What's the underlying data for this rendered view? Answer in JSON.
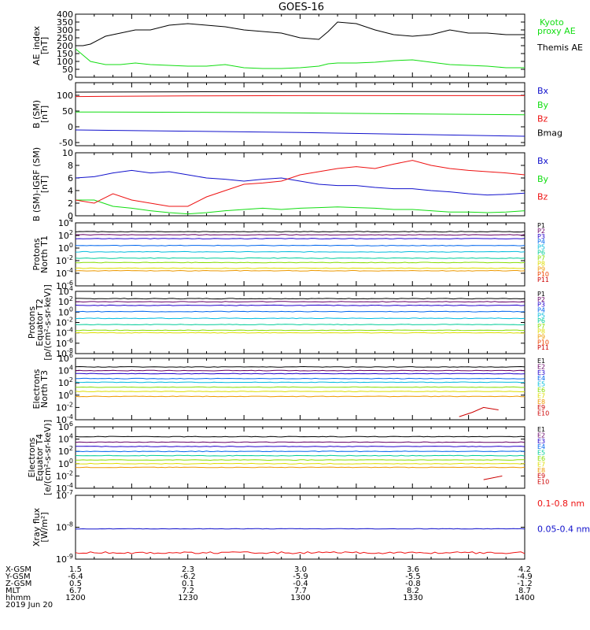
{
  "title": "GOES-16",
  "colors": {
    "black": "#000000",
    "red": "#ee1111",
    "green": "#11dd11",
    "blue": "#1111cc",
    "p1": "#000000",
    "p2": "#660066",
    "p3": "#2200cc",
    "p4": "#0066ee",
    "p5": "#00bbdd",
    "p6": "#00cc99",
    "p7": "#88dd00",
    "p8": "#dddd00",
    "p9": "#ee9900",
    "p10": "#ee4400",
    "p11": "#cc0000"
  },
  "chart_data": [
    {
      "type": "line",
      "ylabel": [
        "AE_index",
        "[nT]"
      ],
      "ylim": [
        0,
        400
      ],
      "ticks": [
        "0",
        "50",
        "100",
        "150",
        "200",
        "250",
        "300",
        "350",
        "400"
      ],
      "log": false,
      "series": [
        {
          "name": "Kyoto proxy AE",
          "color": "green",
          "x": [
            0,
            4,
            8,
            16,
            24,
            32,
            40,
            50,
            60,
            70,
            80,
            90,
            100,
            110,
            120,
            130,
            135,
            140,
            150,
            160,
            170,
            180,
            190,
            200,
            210,
            220,
            230,
            240
          ],
          "y": [
            180,
            140,
            100,
            80,
            80,
            90,
            80,
            75,
            70,
            70,
            80,
            60,
            55,
            55,
            60,
            70,
            85,
            90,
            90,
            95,
            105,
            110,
            95,
            80,
            75,
            70,
            60,
            60
          ]
        },
        {
          "name": "Themis AE",
          "color": "black",
          "x": [
            0,
            4,
            8,
            16,
            24,
            32,
            40,
            50,
            60,
            70,
            80,
            90,
            100,
            110,
            120,
            130,
            135,
            140,
            150,
            160,
            170,
            180,
            190,
            200,
            210,
            220,
            230,
            240
          ],
          "y": [
            200,
            200,
            210,
            260,
            280,
            300,
            300,
            330,
            340,
            330,
            320,
            300,
            290,
            280,
            250,
            240,
            290,
            350,
            340,
            300,
            270,
            260,
            270,
            300,
            280,
            280,
            270,
            270
          ]
        }
      ],
      "legend": [
        "Kyoto proxy AE",
        "Themis AE"
      ]
    },
    {
      "type": "line",
      "ylabel": [
        "B (SM)",
        "[nT]"
      ],
      "ylim": [
        -60,
        140
      ],
      "ticks": [
        "-50",
        "0",
        "50",
        "100"
      ],
      "tickvals": [
        -50,
        0,
        50,
        100
      ],
      "log": false,
      "series": [
        {
          "name": "Bx",
          "color": "blue",
          "x": [
            0,
            60,
            120,
            180,
            240
          ],
          "y": [
            -10,
            -14,
            -18,
            -24,
            -30
          ]
        },
        {
          "name": "By",
          "color": "green",
          "x": [
            0,
            60,
            120,
            180,
            240
          ],
          "y": [
            47,
            46,
            44,
            41,
            38
          ]
        },
        {
          "name": "Bz",
          "color": "red",
          "x": [
            0,
            60,
            120,
            180,
            240
          ],
          "y": [
            96,
            98,
            99,
            99,
            99
          ]
        },
        {
          "name": "Bmag",
          "color": "black",
          "x": [
            0,
            60,
            120,
            180,
            240
          ],
          "y": [
            110,
            111,
            112,
            112,
            112
          ]
        }
      ],
      "legend": [
        "Bx",
        "By",
        "Bz",
        "Bmag"
      ]
    },
    {
      "type": "line",
      "ylabel": [
        "B (SM)-IGRF (SM)",
        "[nT]"
      ],
      "ylim": [
        0,
        10
      ],
      "ticks": [
        "0",
        "2",
        "4",
        "6",
        "8",
        "10"
      ],
      "tickvals": [
        0,
        2,
        4,
        6,
        8,
        10
      ],
      "log": false,
      "series": [
        {
          "name": "Bx",
          "color": "blue",
          "x": [
            0,
            10,
            20,
            30,
            40,
            50,
            60,
            70,
            80,
            90,
            100,
            110,
            120,
            130,
            140,
            150,
            160,
            170,
            180,
            190,
            200,
            210,
            220,
            230,
            240
          ],
          "y": [
            6.0,
            6.2,
            6.8,
            7.2,
            6.8,
            7.0,
            6.5,
            6.0,
            5.8,
            5.5,
            5.8,
            6.0,
            5.5,
            5.0,
            4.8,
            4.8,
            4.5,
            4.3,
            4.3,
            4.0,
            3.8,
            3.5,
            3.3,
            3.4,
            3.6
          ]
        },
        {
          "name": "By",
          "color": "green",
          "x": [
            0,
            10,
            20,
            30,
            40,
            50,
            60,
            70,
            80,
            90,
            100,
            110,
            120,
            130,
            140,
            150,
            160,
            170,
            180,
            190,
            200,
            210,
            220,
            230,
            240
          ],
          "y": [
            2.5,
            2.5,
            1.5,
            1.2,
            0.8,
            0.5,
            0.3,
            0.5,
            0.8,
            1.0,
            1.2,
            1.0,
            1.2,
            1.3,
            1.4,
            1.3,
            1.2,
            1.0,
            1.0,
            0.8,
            0.6,
            0.6,
            0.5,
            0.6,
            0.8
          ]
        },
        {
          "name": "Bz",
          "color": "red",
          "x": [
            0,
            10,
            20,
            30,
            40,
            50,
            60,
            70,
            80,
            90,
            100,
            110,
            120,
            130,
            140,
            150,
            160,
            170,
            180,
            190,
            200,
            210,
            220,
            230,
            240
          ],
          "y": [
            2.5,
            2.0,
            3.5,
            2.5,
            2.0,
            1.5,
            1.5,
            3.0,
            4.0,
            5.0,
            5.2,
            5.5,
            6.5,
            7.0,
            7.5,
            7.8,
            7.5,
            8.2,
            8.8,
            8.0,
            7.5,
            7.2,
            7.0,
            6.8,
            6.5
          ]
        }
      ],
      "legend": [
        "Bx",
        "By",
        "Bz"
      ]
    },
    {
      "type": "line",
      "ylabel": [
        "Protons",
        "North T1"
      ],
      "ylim": [
        -6,
        4
      ],
      "log": true,
      "ticks": [
        "10^-6",
        "10^-4",
        "10^-2",
        "10^0",
        "10^2",
        "10^4"
      ],
      "tickvals": [
        -6,
        -4,
        -2,
        0,
        2,
        4
      ],
      "series": [
        {
          "name": "P1",
          "color": "p1",
          "level": 2.6
        },
        {
          "name": "P2",
          "color": "p2",
          "level": 2.1
        },
        {
          "name": "P3",
          "color": "p3",
          "level": 1.5
        },
        {
          "name": "P4",
          "color": "p4",
          "level": 0.4
        },
        {
          "name": "P5",
          "color": "p5",
          "level": -0.6
        },
        {
          "name": "P6",
          "color": "p6",
          "level": -1.6
        },
        {
          "name": "P7",
          "color": "p7",
          "level": -2.3
        },
        {
          "name": "P8",
          "color": "p8",
          "level": -3.2
        },
        {
          "name": "P9",
          "color": "p9",
          "level": -3.6
        },
        {
          "name": "P10",
          "color": "p10"
        },
        {
          "name": "P11",
          "color": "p11"
        }
      ],
      "legend": [
        "P1",
        "P2",
        "P3",
        "P4",
        "P5",
        "P6",
        "P7",
        "P8",
        "P9",
        "P10",
        "P11"
      ]
    },
    {
      "type": "line",
      "ylabel": [
        "Protons",
        "Equator T2",
        "[p/(cm²-s-sr-keV)]"
      ],
      "ylim": [
        -8,
        4
      ],
      "log": true,
      "ticks": [
        "10^-8",
        "10^-6",
        "10^-4",
        "10^-2",
        "10^0",
        "10^2",
        "10^4"
      ],
      "tickvals": [
        -8,
        -6,
        -4,
        -2,
        0,
        2,
        4
      ],
      "series": [
        {
          "name": "P1",
          "color": "p1",
          "level": 2.6
        },
        {
          "name": "P2",
          "color": "p2",
          "level": 2.0
        },
        {
          "name": "P3",
          "color": "p3",
          "level": 1.3
        },
        {
          "name": "P4",
          "color": "p4",
          "level": 0.1
        },
        {
          "name": "P5",
          "color": "p5",
          "level": -1.2
        },
        {
          "name": "P6",
          "color": "p6",
          "level": -2.4
        },
        {
          "name": "P7",
          "color": "p7",
          "level": -3.5
        },
        {
          "name": "P8",
          "color": "p8",
          "level": -4.0
        },
        {
          "name": "P9",
          "color": "p9"
        },
        {
          "name": "P10",
          "color": "p10"
        },
        {
          "name": "P11",
          "color": "p11"
        }
      ],
      "legend": [
        "P1",
        "P2",
        "P3",
        "P4",
        "P5",
        "P6",
        "P7",
        "P8",
        "P9",
        "P10",
        "P11"
      ]
    },
    {
      "type": "line",
      "ylabel": [
        "Electrons",
        "North T3"
      ],
      "ylim": [
        -4,
        6
      ],
      "log": true,
      "ticks": [
        "10^-4",
        "10^-2",
        "10^0",
        "10^2",
        "10^4",
        "10^6"
      ],
      "tickvals": [
        -4,
        -2,
        0,
        2,
        4,
        6
      ],
      "series": [
        {
          "name": "E1",
          "color": "p1",
          "level": 4.6
        },
        {
          "name": "E2",
          "color": "p2",
          "level": 4.0
        },
        {
          "name": "E3",
          "color": "p3",
          "level": 3.5
        },
        {
          "name": "E4",
          "color": "p4",
          "level": 2.7
        },
        {
          "name": "E5",
          "color": "p5",
          "level": 2.1
        },
        {
          "name": "E6",
          "color": "p7",
          "level": 1.3
        },
        {
          "name": "E7",
          "color": "p8",
          "level": 0.6
        },
        {
          "name": "E8",
          "color": "p9",
          "level": -0.2
        },
        {
          "name": "E9",
          "color": "p11",
          "x": [
            205,
            212,
            218,
            226
          ],
          "y": [
            -3.5,
            -2.8,
            -2.0,
            -2.4
          ]
        },
        {
          "name": "E10",
          "color": "p11"
        }
      ],
      "legend": [
        "E1",
        "E2",
        "E3",
        "E4",
        "E5",
        "E6",
        "E7",
        "E8",
        "E9",
        "E10"
      ]
    },
    {
      "type": "line",
      "ylabel": [
        "Electrons",
        "Equator T4",
        "[e/(cm²-s-sr-keV)]"
      ],
      "ylim": [
        -4,
        6
      ],
      "log": true,
      "ticks": [
        "10^-4",
        "10^-2",
        "10^0",
        "10^2",
        "10^4",
        "10^6"
      ],
      "tickvals": [
        -4,
        -2,
        0,
        2,
        4,
        6
      ],
      "series": [
        {
          "name": "E1",
          "color": "p1",
          "level": 4.4
        },
        {
          "name": "E2",
          "color": "p2",
          "level": 3.5
        },
        {
          "name": "E3",
          "color": "p3",
          "level": 2.8
        },
        {
          "name": "E4",
          "color": "p4",
          "level": 2.0
        },
        {
          "name": "E5",
          "color": "p6",
          "level": 1.3
        },
        {
          "name": "E6",
          "color": "p7",
          "level": 0.6
        },
        {
          "name": "E7",
          "color": "p8",
          "level": 0.0
        },
        {
          "name": "E8",
          "color": "p9",
          "level": -0.6
        },
        {
          "name": "E9",
          "color": "p11",
          "x": [
            218,
            228
          ],
          "y": [
            -2.6,
            -2.0
          ]
        },
        {
          "name": "E10",
          "color": "p11"
        }
      ],
      "legend": [
        "E1",
        "E2",
        "E3",
        "E4",
        "E5",
        "E6",
        "E7",
        "E8",
        "E9",
        "E10"
      ]
    },
    {
      "type": "line",
      "ylabel": [
        "Xray flux",
        "[W/m²]"
      ],
      "ylim": [
        -9,
        -7
      ],
      "log": true,
      "ticks": [
        "10^-9",
        "10^-8",
        "10^-7"
      ],
      "tickvals": [
        -9,
        -8,
        -7
      ],
      "series": [
        {
          "name": "0.1-0.8 nm",
          "color": "red",
          "level": -8.8,
          "noise": 0.12
        },
        {
          "name": "0.05-0.4 nm",
          "color": "blue",
          "level": -8.05,
          "noise": 0.03
        }
      ],
      "legend": [
        "0.1-0.8 nm",
        "0.05-0.4 nm"
      ]
    }
  ],
  "footer": {
    "rows": [
      {
        "label": "X-GSM",
        "values": [
          "1.5",
          "2.3",
          "3.0",
          "3.6",
          "4.2"
        ]
      },
      {
        "label": "Y-GSM",
        "values": [
          "-6.4",
          "-6.2",
          "-5.9",
          "-5.5",
          "-4.9"
        ]
      },
      {
        "label": "Z-GSM",
        "values": [
          "0.5",
          "0.1",
          "-0.4",
          "-0.8",
          "-1.2"
        ]
      },
      {
        "label": "MLT",
        "values": [
          "6.7",
          "7.2",
          "7.7",
          "8.2",
          "8.7"
        ]
      },
      {
        "label": "hhmm",
        "values": [
          "1200",
          "1230",
          "1300",
          "1330",
          "1400"
        ]
      }
    ],
    "date": "2019 Jun 20"
  }
}
